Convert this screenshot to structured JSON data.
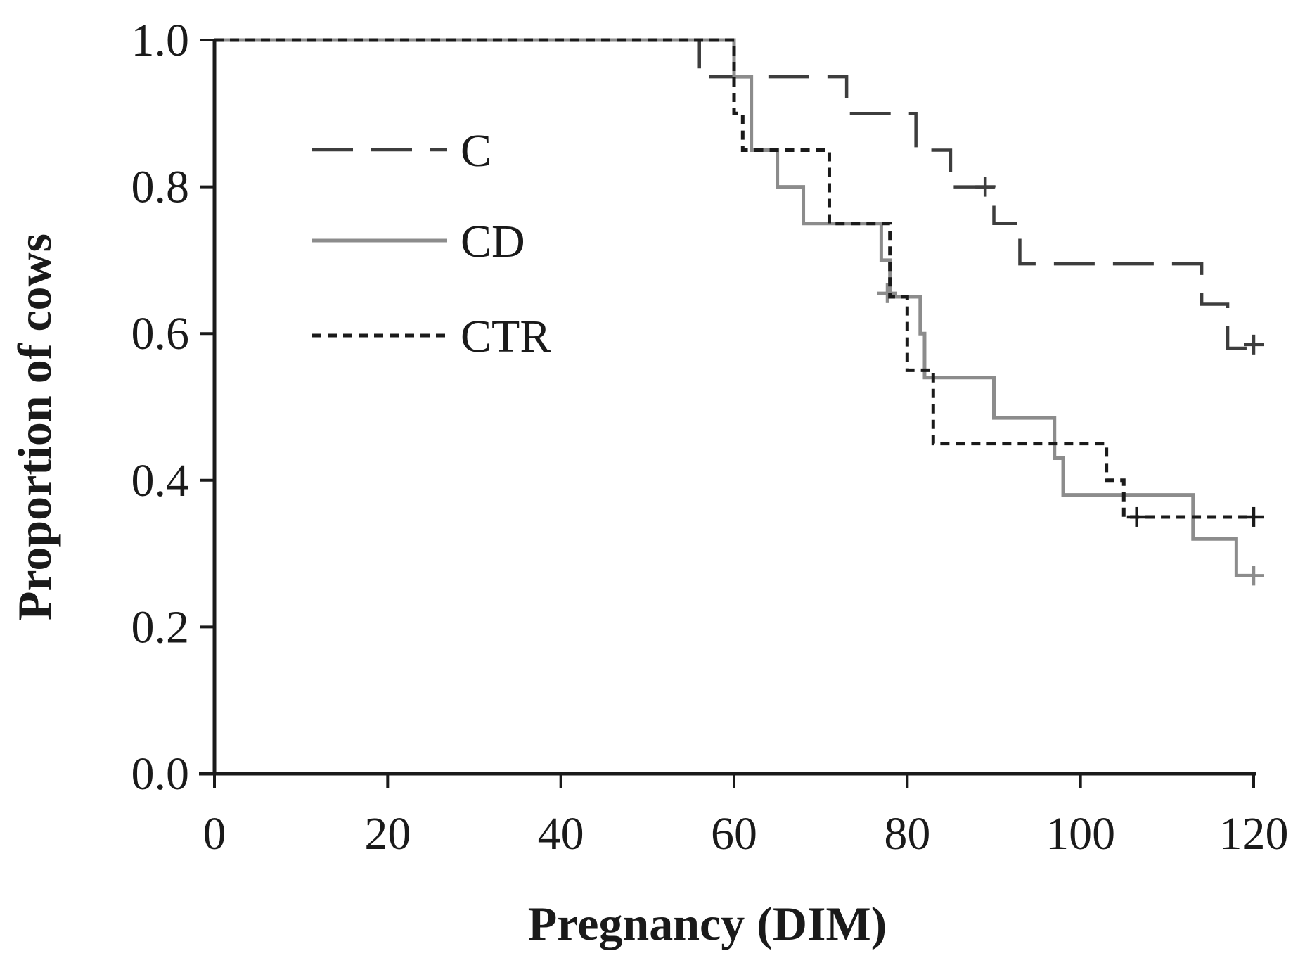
{
  "chart_data": {
    "type": "line",
    "subtype": "kaplan-meier-step",
    "title": "",
    "xlabel": "Pregnancy (DIM)",
    "ylabel": "Proportion of cows",
    "xlim": [
      0,
      120
    ],
    "ylim": [
      0,
      1
    ],
    "x_ticks": [
      0,
      20,
      40,
      60,
      80,
      100,
      120
    ],
    "x_tick_labels": [
      "0",
      "20",
      "40",
      "60",
      "80",
      "100",
      "120"
    ],
    "y_ticks": [
      0,
      0.2,
      0.4,
      0.6,
      0.8,
      1.0
    ],
    "y_tick_labels": [
      "0.0",
      "0.2",
      "0.4",
      "0.6",
      "0.8",
      "1.0"
    ],
    "grid": false,
    "legend_position": "top-left",
    "series": [
      {
        "name": "C",
        "style": "long-dash",
        "color": "#3d3d3d",
        "steps": [
          [
            0,
            1.0
          ],
          [
            56,
            0.95
          ],
          [
            73,
            0.9
          ],
          [
            81,
            0.85
          ],
          [
            85,
            0.8
          ],
          [
            90,
            0.75
          ],
          [
            93,
            0.695
          ],
          [
            114,
            0.64
          ],
          [
            117,
            0.58
          ]
        ],
        "end_x": 120,
        "censored": [
          [
            89,
            0.8
          ],
          [
            120,
            0.585
          ]
        ]
      },
      {
        "name": "CD",
        "style": "solid",
        "color": "#8c8c8c",
        "steps": [
          [
            0,
            1.0
          ],
          [
            60,
            0.95
          ],
          [
            62,
            0.85
          ],
          [
            65,
            0.8
          ],
          [
            68,
            0.75
          ],
          [
            77,
            0.7
          ],
          [
            78,
            0.65
          ],
          [
            81.5,
            0.6
          ],
          [
            82,
            0.54
          ],
          [
            90,
            0.485
          ],
          [
            97,
            0.43
          ],
          [
            98,
            0.38
          ],
          [
            113,
            0.32
          ],
          [
            118,
            0.27
          ]
        ],
        "end_x": 120,
        "censored": [
          [
            77.7,
            0.655
          ],
          [
            120,
            0.27
          ]
        ]
      },
      {
        "name": "CTR",
        "style": "short-dash",
        "color": "#1a1a1a",
        "steps": [
          [
            0,
            1.0
          ],
          [
            60,
            0.9
          ],
          [
            61,
            0.85
          ],
          [
            71,
            0.75
          ],
          [
            78,
            0.65
          ],
          [
            80,
            0.55
          ],
          [
            83,
            0.45
          ],
          [
            103,
            0.4
          ],
          [
            105,
            0.35
          ]
        ],
        "end_x": 120,
        "censored": [
          [
            106.5,
            0.35
          ],
          [
            120,
            0.35
          ]
        ]
      }
    ]
  }
}
